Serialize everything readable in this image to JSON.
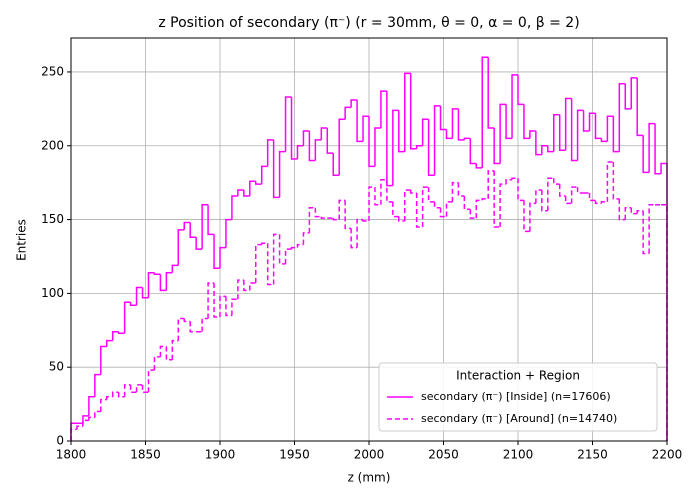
{
  "chart_data": {
    "type": "histogram-step",
    "title": "z Position of secondary (π⁻) (r = 30mm, θ = 0, α = 0, β = 2)",
    "x_label": "z (mm)",
    "y_label": "Entries",
    "legend_title": "Interaction + Region",
    "legend": "lower right",
    "grid": true,
    "xlim": [
      1800,
      2200
    ],
    "ylim": [
      0,
      273
    ],
    "xticks": [
      1800,
      1850,
      1900,
      1950,
      2000,
      2050,
      2100,
      2150,
      2200
    ],
    "yticks": [
      0,
      50,
      100,
      150,
      200,
      250
    ],
    "bins": [
      1800,
      1804,
      1808,
      1812,
      1816,
      1820,
      1824,
      1828,
      1832,
      1836,
      1840,
      1844,
      1848,
      1852,
      1856,
      1860,
      1864,
      1868,
      1872,
      1876,
      1880,
      1884,
      1888,
      1892,
      1896,
      1900,
      1904,
      1908,
      1912,
      1916,
      1920,
      1924,
      1928,
      1932,
      1936,
      1940,
      1944,
      1948,
      1952,
      1956,
      1960,
      1964,
      1968,
      1972,
      1976,
      1980,
      1984,
      1988,
      1992,
      1996,
      2000,
      2004,
      2008,
      2012,
      2016,
      2020,
      2024,
      2028,
      2032,
      2036,
      2040,
      2044,
      2048,
      2052,
      2056,
      2060,
      2064,
      2068,
      2072,
      2076,
      2080,
      2084,
      2088,
      2092,
      2096,
      2100,
      2104,
      2108,
      2112,
      2116,
      2120,
      2124,
      2128,
      2132,
      2136,
      2140,
      2144,
      2148,
      2152,
      2156,
      2160,
      2164,
      2168,
      2172,
      2176,
      2180,
      2184,
      2188,
      2192,
      2196,
      2200
    ],
    "series": [
      {
        "name": "secondary (π⁻) [Inside] (n=17606)",
        "color": "#ff00ff",
        "dash": false,
        "values": [
          12,
          12,
          17,
          30,
          45,
          64,
          68,
          74,
          73,
          94,
          92,
          104,
          97,
          114,
          113,
          102,
          114,
          119,
          143,
          148,
          138,
          130,
          160,
          140,
          117,
          131,
          150,
          166,
          170,
          166,
          176,
          174,
          186,
          204,
          165,
          196,
          233,
          191,
          200,
          210,
          190,
          204,
          212,
          195,
          180,
          218,
          226,
          231,
          203,
          220,
          186,
          212,
          237,
          173,
          224,
          196,
          249,
          198,
          200,
          218,
          180,
          227,
          211,
          205,
          225,
          204,
          205,
          188,
          185,
          260,
          212,
          188,
          228,
          205,
          248,
          228,
          205,
          210,
          194,
          200,
          196,
          221,
          197,
          232,
          190,
          224,
          210,
          222,
          205,
          203,
          220,
          196,
          242,
          225,
          246,
          207,
          182,
          215,
          181,
          188
        ]
      },
      {
        "name": "secondary (π⁻) [Around] (n=14740)",
        "color": "#ff00ff",
        "dash": true,
        "values": [
          8,
          10,
          14,
          16,
          20,
          28,
          30,
          33,
          30,
          38,
          33,
          38,
          33,
          48,
          57,
          64,
          55,
          68,
          83,
          81,
          74,
          74,
          83,
          107,
          84,
          98,
          85,
          96,
          109,
          102,
          107,
          133,
          134,
          106,
          140,
          120,
          130,
          131,
          133,
          141,
          158,
          152,
          151,
          151,
          150,
          163,
          144,
          131,
          150,
          149,
          172,
          160,
          177,
          162,
          152,
          149,
          170,
          168,
          145,
          172,
          162,
          158,
          152,
          162,
          175,
          166,
          157,
          151,
          163,
          164,
          183,
          145,
          174,
          177,
          178,
          163,
          142,
          161,
          170,
          156,
          178,
          174,
          166,
          161,
          172,
          168,
          168,
          163,
          161,
          162,
          189,
          164,
          150,
          158,
          154,
          156,
          127,
          160,
          160,
          160
        ]
      }
    ]
  }
}
